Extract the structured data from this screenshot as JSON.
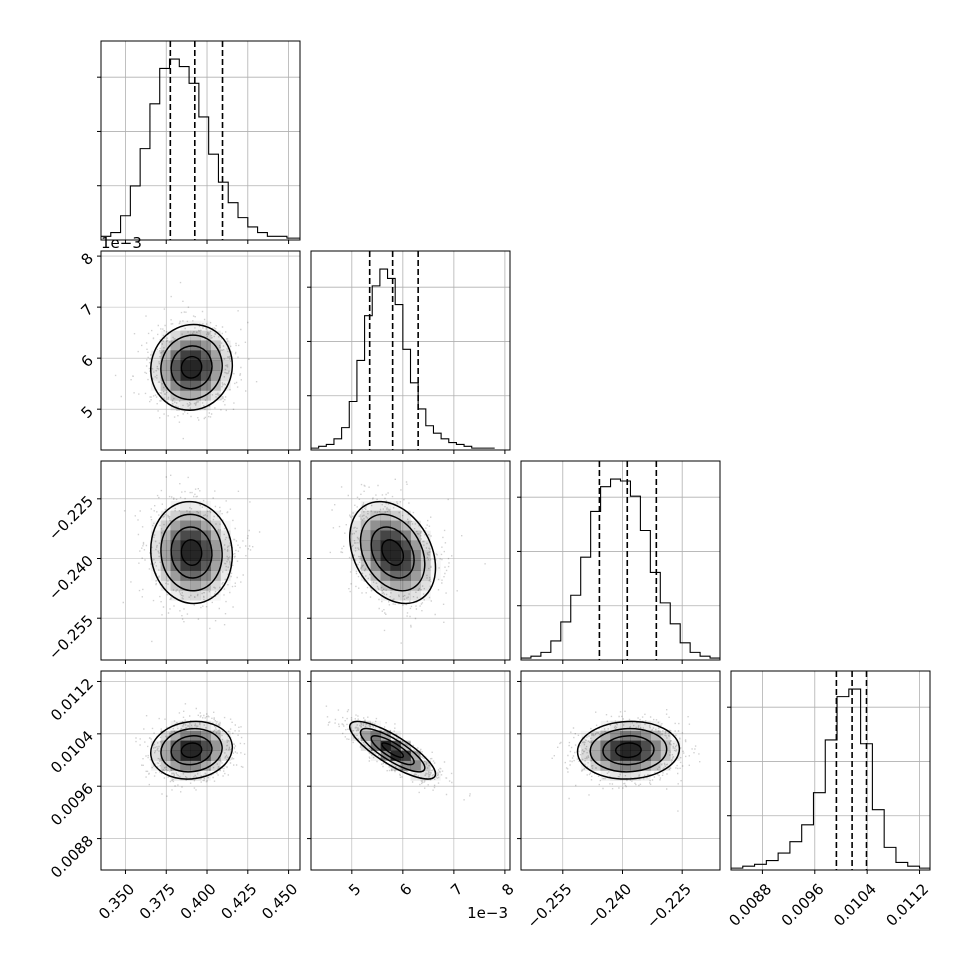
{
  "chart_data": {
    "type": "corner",
    "n_params": 4,
    "quantiles": [
      0.16,
      0.5,
      0.84
    ],
    "scientific_offsets": [
      {
        "axis": "param_1_y",
        "text": "1e−3"
      },
      {
        "axis": "param_1_x",
        "text": "1e−3"
      }
    ],
    "parameters": [
      {
        "index": 0,
        "label": "",
        "range": [
          0.335,
          0.457
        ],
        "ticks": [
          0.35,
          0.375,
          0.4,
          0.425,
          0.45
        ],
        "tick_labels": [
          "0.350",
          "0.375",
          "0.400",
          "0.425",
          "0.450"
        ],
        "quantile_values": [
          0.3775,
          0.3925,
          0.4095
        ],
        "hist_bin_edges": [
          0.335,
          0.341,
          0.347,
          0.353,
          0.359,
          0.365,
          0.371,
          0.377,
          0.383,
          0.389,
          0.395,
          0.401,
          0.407,
          0.413,
          0.419,
          0.425,
          0.431,
          0.437,
          0.443,
          0.449,
          0.457
        ],
        "hist_counts": [
          0.02,
          0.04,
          0.13,
          0.29,
          0.49,
          0.73,
          0.92,
          0.97,
          0.93,
          0.84,
          0.66,
          0.46,
          0.31,
          0.2,
          0.12,
          0.07,
          0.04,
          0.02,
          0.02,
          0.01
        ]
      },
      {
        "index": 1,
        "label": "",
        "range": [
          0.0042,
          0.0081
        ],
        "ticks": [
          0.005,
          0.006,
          0.007,
          0.008
        ],
        "tick_labels": [
          "5",
          "6",
          "7",
          "8"
        ],
        "quantile_values": [
          0.00535,
          0.0058,
          0.0063
        ],
        "hist_bin_edges": [
          0.0042,
          0.00435,
          0.0045,
          0.00465,
          0.0048,
          0.00495,
          0.0051,
          0.00525,
          0.0054,
          0.00555,
          0.0057,
          0.00585,
          0.006,
          0.00615,
          0.0063,
          0.00645,
          0.0066,
          0.00675,
          0.0069,
          0.00705,
          0.0072,
          0.00735,
          0.0075,
          0.00765,
          0.0078
        ],
        "hist_counts": [
          0.01,
          0.02,
          0.03,
          0.06,
          0.12,
          0.26,
          0.48,
          0.72,
          0.88,
          0.97,
          0.92,
          0.78,
          0.54,
          0.36,
          0.22,
          0.13,
          0.09,
          0.06,
          0.04,
          0.03,
          0.02,
          0.01,
          0.01,
          0.01
        ]
      },
      {
        "index": 2,
        "label": "",
        "range": [
          -0.2655,
          -0.2155
        ],
        "ticks": [
          -0.255,
          -0.24,
          -0.225
        ],
        "tick_labels": [
          "−0.255",
          "−0.240",
          "−0.225"
        ],
        "quantile_values": [
          -0.2458,
          -0.2388,
          -0.2315
        ],
        "hist_bin_edges": [
          -0.2655,
          -0.263,
          -0.2605,
          -0.258,
          -0.2555,
          -0.253,
          -0.2505,
          -0.248,
          -0.2455,
          -0.243,
          -0.2405,
          -0.238,
          -0.2355,
          -0.233,
          -0.2305,
          -0.228,
          -0.2255,
          -0.223,
          -0.2205,
          -0.218,
          -0.2155
        ],
        "hist_counts": [
          0.01,
          0.02,
          0.04,
          0.1,
          0.2,
          0.34,
          0.54,
          0.78,
          0.91,
          0.95,
          0.94,
          0.86,
          0.68,
          0.46,
          0.3,
          0.19,
          0.09,
          0.04,
          0.02,
          0.01
        ]
      },
      {
        "index": 3,
        "label": "",
        "range": [
          0.00832,
          0.01136
        ],
        "ticks": [
          0.0088,
          0.0096,
          0.0104,
          0.0112
        ],
        "tick_labels": [
          "0.0088",
          "0.0096",
          "0.0104",
          "0.0112"
        ],
        "quantile_values": [
          0.00993,
          0.01017,
          0.01039
        ],
        "hist_bin_edges": [
          0.00832,
          0.0085,
          0.00868,
          0.00886,
          0.00904,
          0.00922,
          0.0094,
          0.00958,
          0.00976,
          0.00994,
          0.01012,
          0.0103,
          0.01048,
          0.01066,
          0.01084,
          0.01102,
          0.0112,
          0.01136
        ],
        "hist_counts": [
          0.01,
          0.02,
          0.03,
          0.05,
          0.09,
          0.15,
          0.24,
          0.41,
          0.69,
          0.92,
          0.96,
          0.67,
          0.32,
          0.12,
          0.04,
          0.02,
          0.01
        ]
      }
    ],
    "pairs": [
      {
        "x": 0,
        "y": 1,
        "mean": [
          0.3905,
          0.00582
        ],
        "sd": [
          0.0125,
          0.00042
        ],
        "corr": 0.05
      },
      {
        "x": 0,
        "y": 2,
        "mean": [
          0.3905,
          -0.2385
        ],
        "sd": [
          0.0125,
          0.0064
        ],
        "corr": -0.05
      },
      {
        "x": 1,
        "y": 2,
        "mean": [
          0.0058,
          -0.2385
        ],
        "sd": [
          0.00042,
          0.0064
        ],
        "corr": -0.3
      },
      {
        "x": 0,
        "y": 3,
        "mean": [
          0.3905,
          0.01015
        ],
        "sd": [
          0.0125,
          0.00022
        ],
        "corr": 0.1
      },
      {
        "x": 1,
        "y": 3,
        "mean": [
          0.0058,
          0.01015
        ],
        "sd": [
          0.00042,
          0.00022
        ],
        "corr": -0.82
      },
      {
        "x": 2,
        "y": 3,
        "mean": [
          -0.2385,
          0.01015
        ],
        "sd": [
          0.0064,
          0.00022
        ],
        "corr": 0.05
      }
    ],
    "contour_levels_sigma": [
      0.5,
      1.0,
      1.5,
      2.0
    ],
    "grid": true,
    "colors": {
      "line": "#000000",
      "grid": "#b0b0b0",
      "points": "#000000"
    }
  }
}
